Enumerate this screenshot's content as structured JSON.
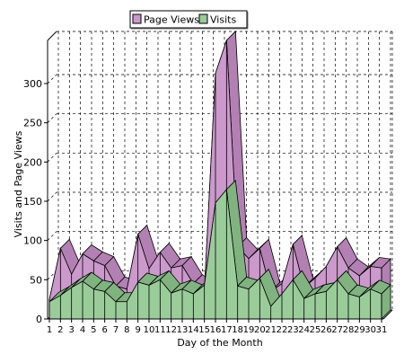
{
  "chart_data": {
    "type": "area",
    "title": "",
    "xlabel": "Day of the Month",
    "ylabel": "Visits and Page Views",
    "x": [
      1,
      2,
      3,
      4,
      5,
      6,
      7,
      8,
      9,
      10,
      11,
      12,
      13,
      14,
      15,
      16,
      17,
      18,
      19,
      20,
      21,
      22,
      23,
      24,
      25,
      26,
      27,
      28,
      29,
      30,
      31
    ],
    "x_tick_labels": [
      "1",
      "2",
      "3",
      "4",
      "5",
      "6",
      "7",
      "8",
      "9",
      "10",
      "11",
      "12",
      "13",
      "14",
      "15",
      "16",
      "17",
      "18",
      "19",
      "20",
      "21",
      "22",
      "23",
      "24",
      "25",
      "26",
      "27",
      "28",
      "29",
      "30",
      "31"
    ],
    "y_ticks": [
      0,
      50,
      100,
      150,
      200,
      250,
      300
    ],
    "y_tick_labels": [
      "0",
      "50",
      "100",
      "150",
      "200",
      "250",
      "300"
    ],
    "ylim": [
      0,
      355
    ],
    "grid": true,
    "legend_position": "top-center",
    "stacked": false,
    "three_d": true,
    "series": [
      {
        "name": "Page Views",
        "color": "#cc99cc",
        "edge_color": "#000000",
        "values": [
          25,
          90,
          57,
          83,
          74,
          68,
          42,
          38,
          108,
          64,
          85,
          65,
          68,
          45,
          36,
          313,
          355,
          92,
          77,
          90,
          35,
          45,
          95,
          40,
          52,
          67,
          92,
          65,
          55,
          67,
          65
        ]
      },
      {
        "name": "Visits",
        "color": "#99cc99",
        "edge_color": "#000000",
        "values": [
          22,
          30,
          40,
          48,
          38,
          35,
          22,
          22,
          47,
          43,
          50,
          33,
          38,
          32,
          43,
          148,
          165,
          42,
          38,
          52,
          16,
          32,
          50,
          26,
          32,
          35,
          50,
          32,
          28,
          38,
          32
        ]
      }
    ]
  }
}
